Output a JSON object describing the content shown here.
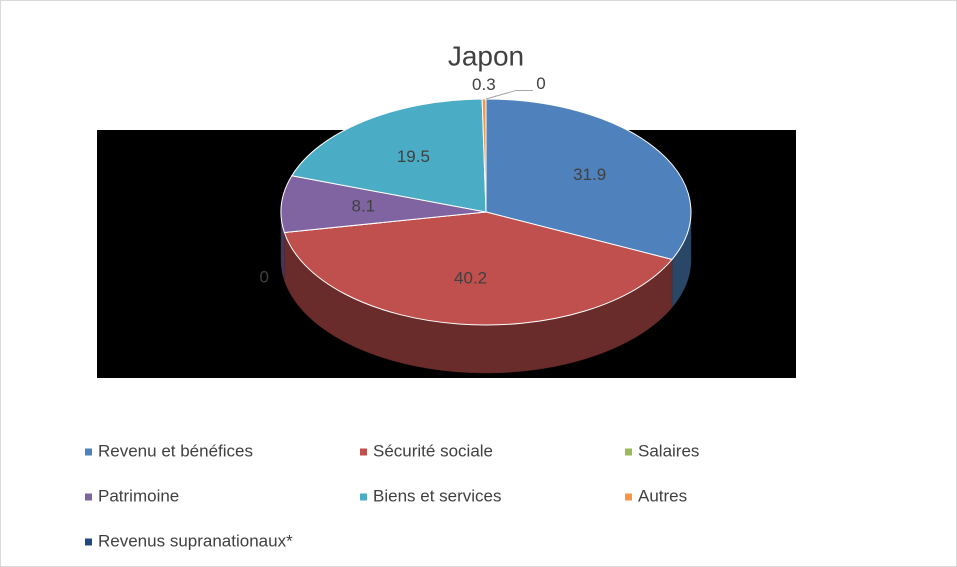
{
  "chart_data": {
    "type": "pie3d",
    "title": "Japon",
    "categories": [
      "Revenu et bénéfices",
      "Sécurité sociale",
      "Salaires",
      "Patrimoine",
      "Biens et services",
      "Autres",
      "Revenus supranationaux*"
    ],
    "values": [
      31.9,
      40.2,
      0,
      8.1,
      19.5,
      0.3,
      0
    ],
    "colors": [
      "#4f81bd",
      "#c0504d",
      "#9bbb59",
      "#8064a2",
      "#4bacc6",
      "#f79646",
      "#1f497d"
    ],
    "legend": "bottom"
  }
}
